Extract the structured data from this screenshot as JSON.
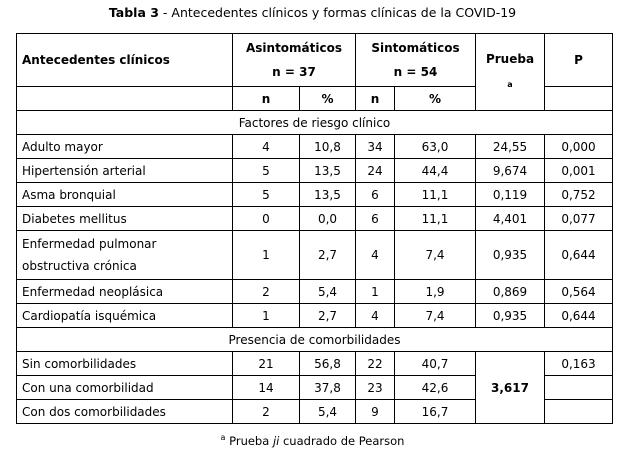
{
  "title": {
    "prefix": "Tabla 3",
    "text": " - Antecedentes clínicos y formas clínicas de la COVID-19"
  },
  "headers": {
    "antecedentes": "Antecedentes clínicos",
    "asintomaticos": "Asintomáticos",
    "asintomaticos_n": "n = 37",
    "sintomaticos": "Sintomáticos",
    "sintomaticos_n": "n = 54",
    "prueba": "Prueba",
    "prueba_sup": "a",
    "p": "P",
    "n": "n",
    "pct": "%"
  },
  "sections": [
    {
      "label": "Factores de riesgo clínico",
      "rows": [
        {
          "name": "Adulto mayor",
          "a_n": "4",
          "a_pct": "10,8",
          "s_n": "34",
          "s_pct": "63,0",
          "prueba": "24,55",
          "p": "0,000"
        },
        {
          "name": "Hipertensión arterial",
          "a_n": "5",
          "a_pct": "13,5",
          "s_n": "24",
          "s_pct": "44,4",
          "prueba": "9,674",
          "p": "0,001"
        },
        {
          "name": "Asma bronquial",
          "a_n": "5",
          "a_pct": "13,5",
          "s_n": "6",
          "s_pct": "11,1",
          "prueba": "0,119",
          "p": "0,752"
        },
        {
          "name": "Diabetes mellitus",
          "a_n": "0",
          "a_pct": "0,0",
          "s_n": "6",
          "s_pct": "11,1",
          "prueba": "4,401",
          "p": "0,077"
        },
        {
          "name": "Enfermedad pulmonar obstructiva crónica",
          "a_n": "1",
          "a_pct": "2,7",
          "s_n": "4",
          "s_pct": "7,4",
          "prueba": "0,935",
          "p": "0,644"
        },
        {
          "name": "Enfermedad neoplásica",
          "a_n": "2",
          "a_pct": "5,4",
          "s_n": "1",
          "s_pct": "1,9",
          "prueba": "0,869",
          "p": "0,564"
        },
        {
          "name": "Cardiopatía isquémica",
          "a_n": "1",
          "a_pct": "2,7",
          "s_n": "4",
          "s_pct": "7,4",
          "prueba": "0,935",
          "p": "0,644"
        }
      ]
    },
    {
      "label": "Presencia de comorbilidades",
      "prueba": "3,617",
      "rows": [
        {
          "name": "Sin comorbilidades",
          "a_n": "21",
          "a_pct": "56,8",
          "s_n": "22",
          "s_pct": "40,7",
          "p": "0,163"
        },
        {
          "name": "Con una comorbilidad",
          "a_n": "14",
          "a_pct": "37,8",
          "s_n": "23",
          "s_pct": "42,6",
          "p": ""
        },
        {
          "name": "Con dos comorbilidades",
          "a_n": "2",
          "a_pct": "5,4",
          "s_n": "9",
          "s_pct": "16,7",
          "p": ""
        }
      ]
    }
  ],
  "footnote": {
    "sup": "a",
    "pre": " Prueba ",
    "em": "ji",
    "post": " cuadrado de Pearson"
  }
}
